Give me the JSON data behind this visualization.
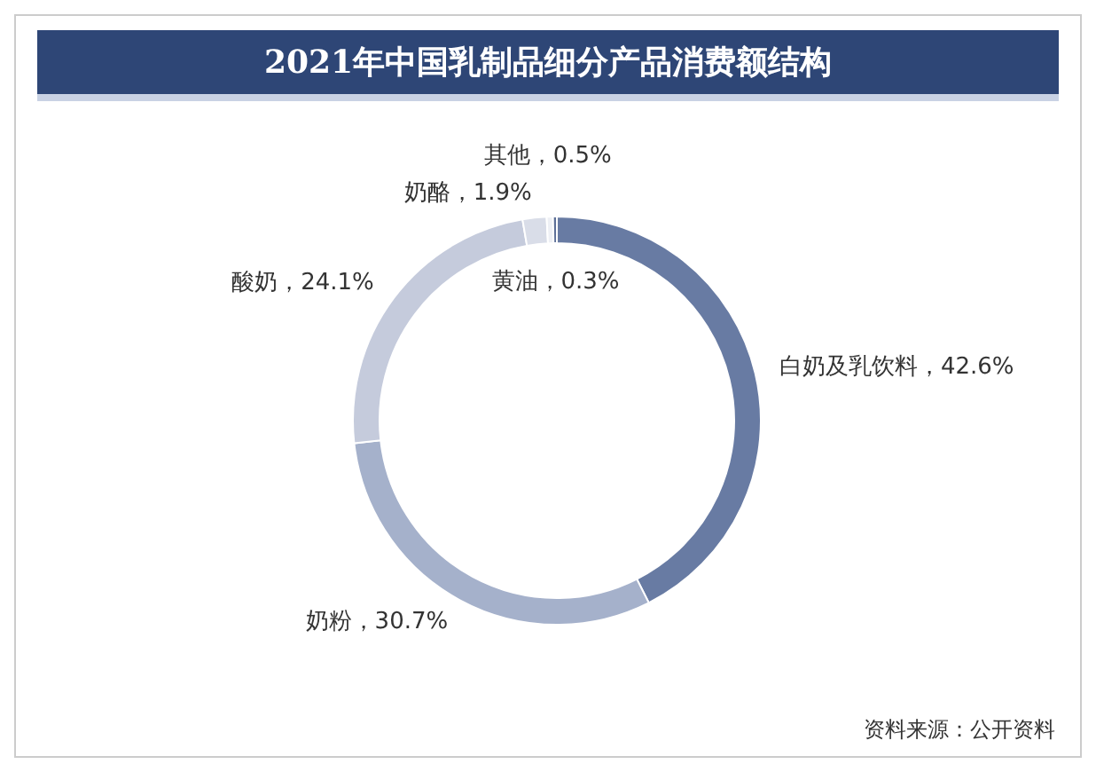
{
  "chart_data": {
    "type": "donut",
    "title": "2021年中国乳制品细分产品消费额结构",
    "categories": [
      "白奶及乳饮料",
      "奶粉",
      "酸奶",
      "奶酪",
      "其他",
      "黄油"
    ],
    "values": [
      42.6,
      30.7,
      24.1,
      1.9,
      0.5,
      0.3
    ],
    "value_labels": [
      "42.6%",
      "30.7%",
      "24.1%",
      "1.9%",
      "0.5%",
      "0.3%"
    ],
    "colors": [
      "#687ba3",
      "#a5b1cb",
      "#c5cbdc",
      "#d9dde8",
      "#eef0f5",
      "#5d6f97"
    ],
    "legend": false,
    "annotations": [
      "资料来源：公开资料"
    ]
  }
}
